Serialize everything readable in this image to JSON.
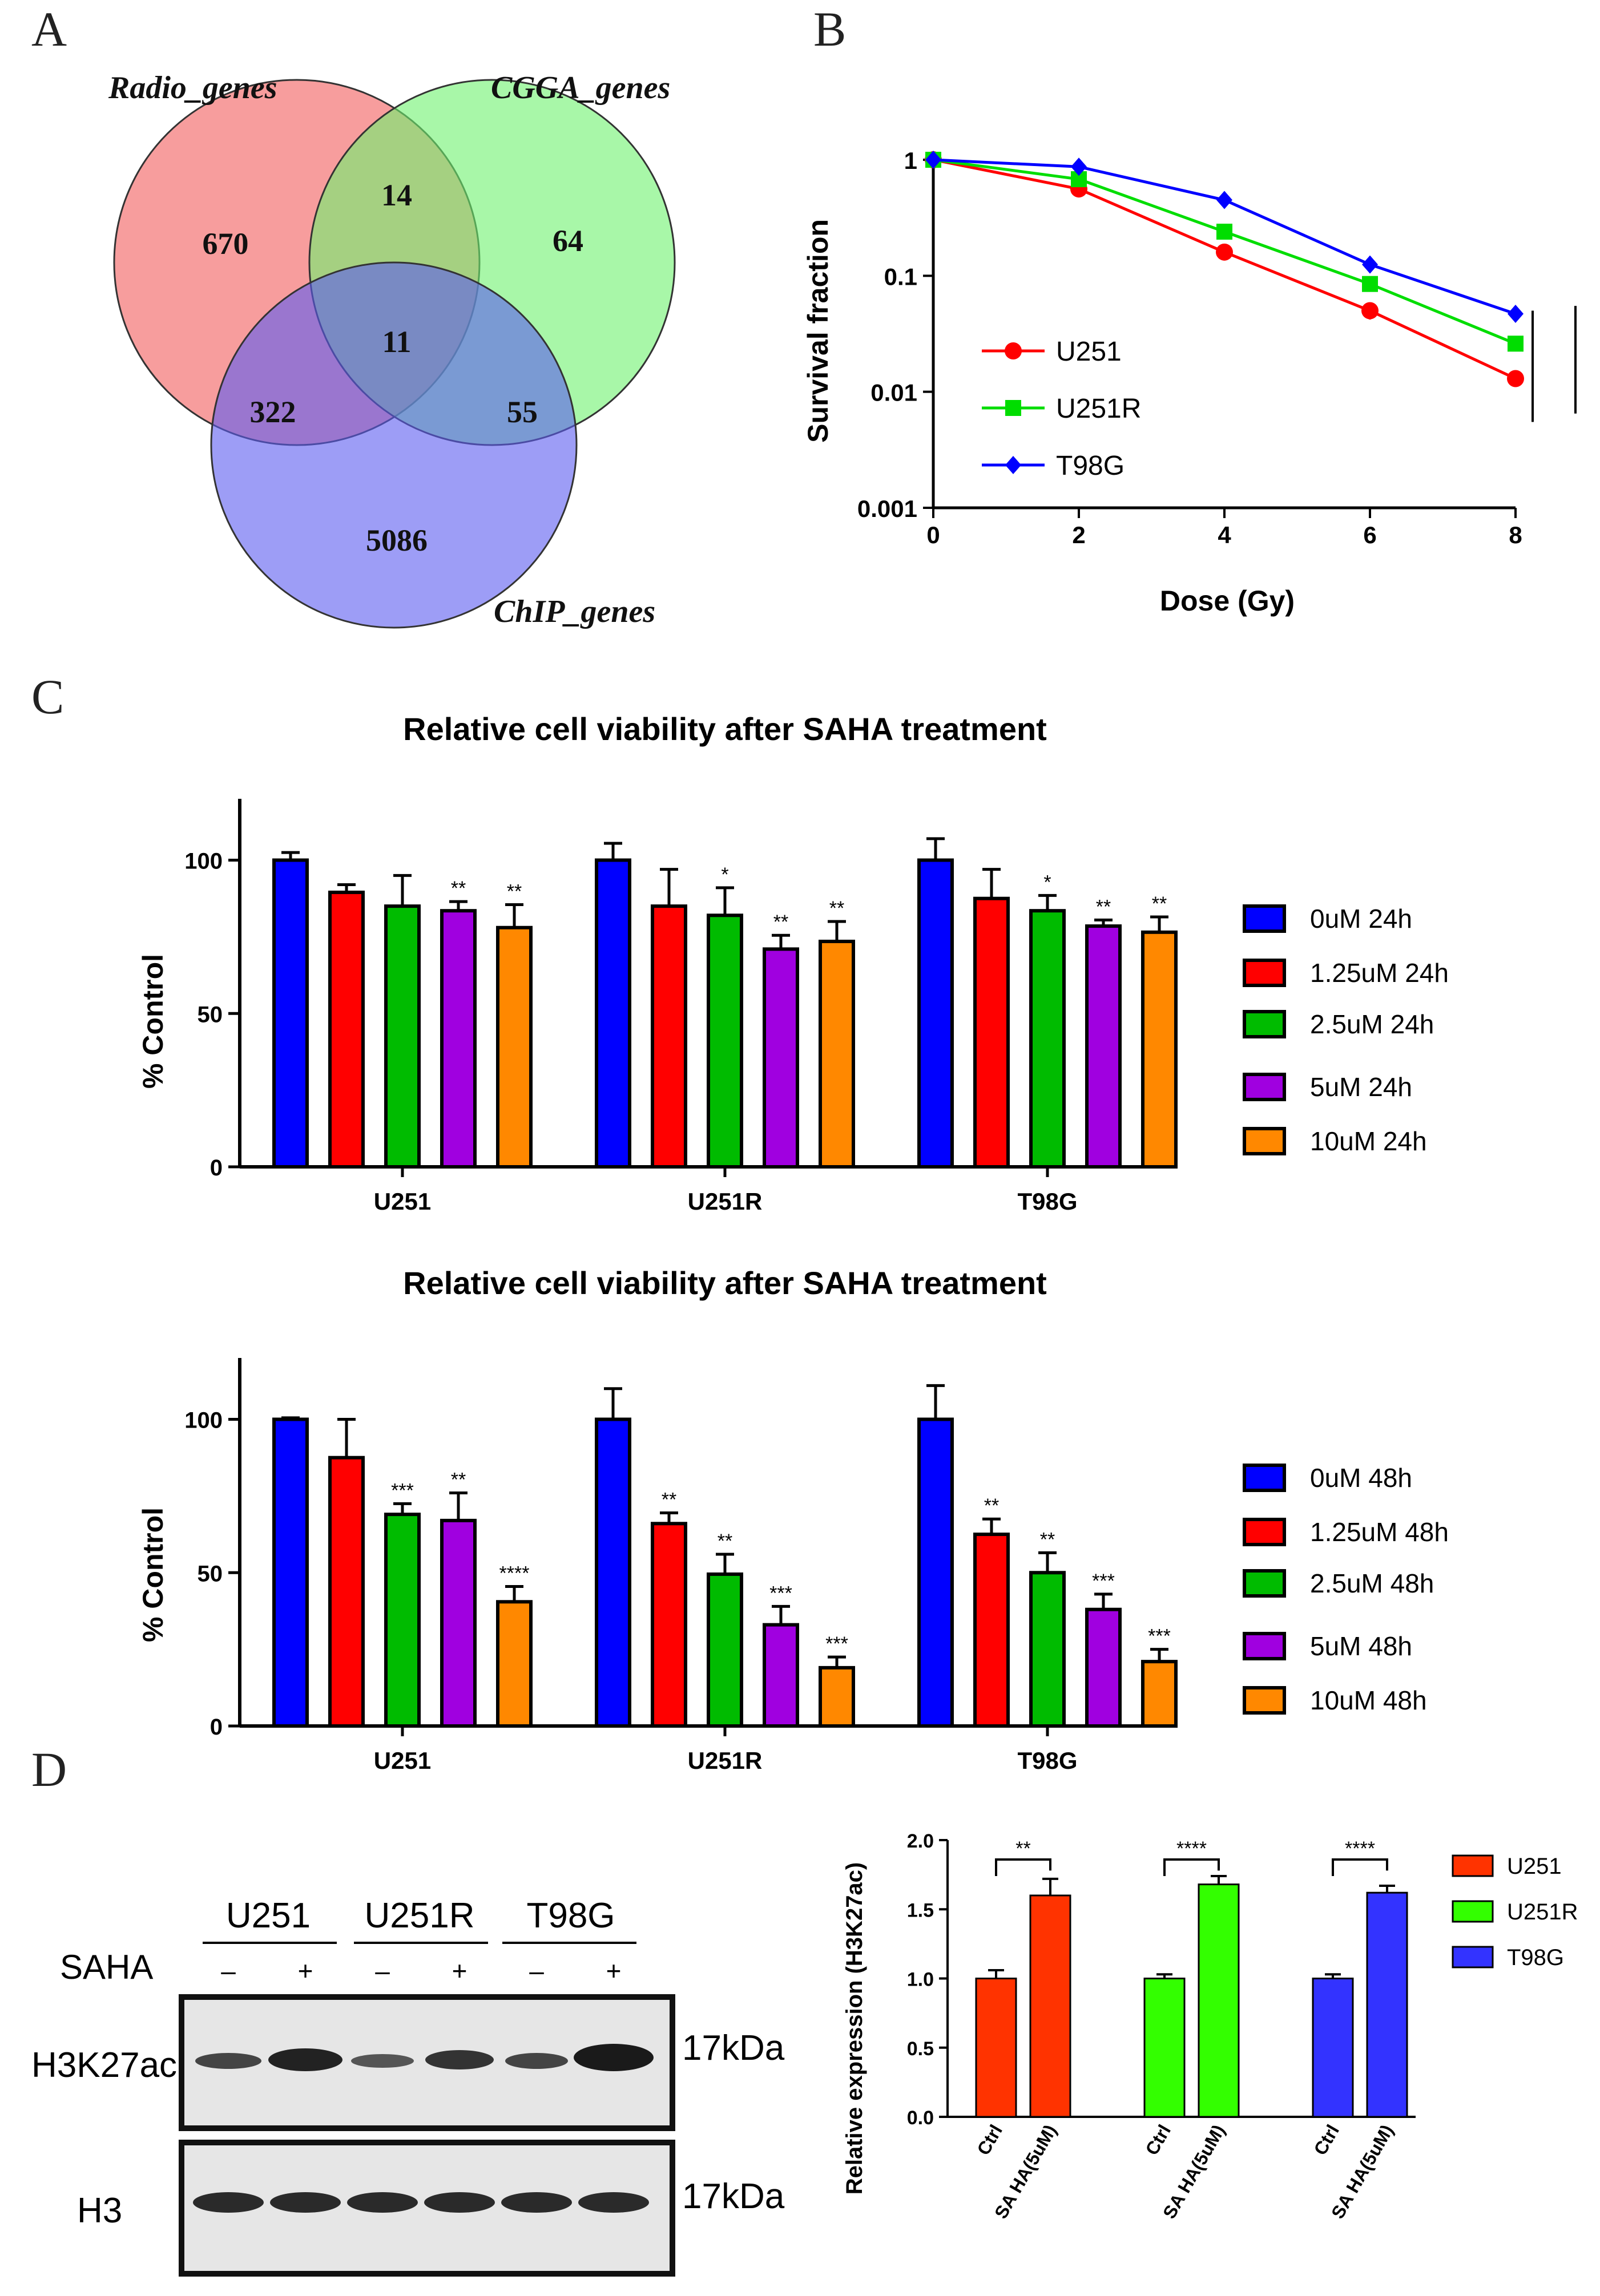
{
  "panel_labels": [
    "A",
    "B",
    "C",
    "D"
  ],
  "venn": {
    "sets": [
      "Radio_genes",
      "CGGA_genes",
      "ChIP_genes"
    ],
    "counts": {
      "radio_only": "670",
      "cgga_only": "64",
      "chip_only": "5086",
      "radio_cgga": "14",
      "radio_chip": "322",
      "cgga_chip": "55",
      "all": "11"
    },
    "colors": {
      "radio": "#f25c5c",
      "cgga": "#6ef26e",
      "chip": "#5b5bf0"
    }
  },
  "chart_data": [
    {
      "id": "B",
      "type": "line",
      "xlabel": "Dose (Gy)",
      "ylabel": "Survival fraction",
      "x_ticks": [
        "0",
        "2",
        "4",
        "6",
        "8"
      ],
      "y_ticks": [
        "1",
        "0.1",
        "0.01",
        "0.001"
      ],
      "xlim": [
        0,
        8
      ],
      "ylim": [
        0.001,
        1
      ],
      "yscale": "log",
      "x": [
        0,
        2,
        4,
        6,
        8
      ],
      "series": [
        {
          "name": "U251",
          "color": "#ff0000",
          "values": [
            1,
            0.56,
            0.16,
            0.05,
            0.013
          ],
          "err": [
            0,
            0.03,
            0.01,
            0.008,
            0.001
          ]
        },
        {
          "name": "U251R",
          "color": "#00dd00",
          "values": [
            1,
            0.68,
            0.24,
            0.085,
            0.026
          ],
          "err": [
            0,
            0.03,
            0.02,
            0.008,
            0.002
          ]
        },
        {
          "name": "T98G",
          "color": "#0000ff",
          "values": [
            1,
            0.87,
            0.45,
            0.125,
            0.047
          ],
          "err": [
            0,
            0.03,
            0.02,
            0.008,
            0.003
          ]
        }
      ]
    },
    {
      "id": "C1",
      "type": "bar",
      "title": "Relative cell viability after SAHA treatment",
      "ylabel": "% Control",
      "ylim": [
        0,
        120
      ],
      "y_ticks": [
        "0",
        "50",
        "100"
      ],
      "categories": [
        "U251",
        "U251R",
        "T98G"
      ],
      "series": [
        {
          "name": "0uM 24h",
          "color": "#0000ff",
          "values": [
            100,
            100,
            100
          ],
          "err": [
            2.5,
            5.5,
            7
          ],
          "stars": [
            "",
            "",
            ""
          ]
        },
        {
          "name": "1.25uM 24h",
          "color": "#ff0000",
          "values": [
            89.5,
            85,
            87.5
          ],
          "err": [
            2.5,
            12,
            9.5
          ],
          "stars": [
            "",
            "",
            ""
          ]
        },
        {
          "name": "2.5uM 24h",
          "color": "#00bb00",
          "values": [
            85,
            82,
            83.5
          ],
          "err": [
            10,
            9,
            5
          ],
          "stars": [
            "",
            "*",
            "*"
          ]
        },
        {
          "name": "5uM 24h",
          "color": "#a000e0",
          "values": [
            83.5,
            71,
            78.5
          ],
          "err": [
            3,
            4.5,
            2
          ],
          "stars": [
            "**",
            "**",
            "**"
          ]
        },
        {
          "name": "10uM 24h",
          "color": "#ff8800",
          "values": [
            78,
            73.5,
            76.5
          ],
          "err": [
            7.5,
            6.5,
            5
          ],
          "stars": [
            "**",
            "**",
            "**"
          ]
        }
      ]
    },
    {
      "id": "C2",
      "type": "bar",
      "title": "Relative cell viability after SAHA treatment",
      "ylabel": "% Control",
      "ylim": [
        0,
        120
      ],
      "y_ticks": [
        "0",
        "50",
        "100"
      ],
      "categories": [
        "U251",
        "U251R",
        "T98G"
      ],
      "series": [
        {
          "name": "0uM 48h",
          "color": "#0000ff",
          "values": [
            100,
            100,
            100
          ],
          "err": [
            0.5,
            10,
            11
          ],
          "stars": [
            "",
            "",
            ""
          ]
        },
        {
          "name": "1.25uM 48h",
          "color": "#ff0000",
          "values": [
            87.5,
            66,
            62.5
          ],
          "err": [
            12.5,
            3.5,
            5
          ],
          "stars": [
            "",
            "**",
            "**"
          ]
        },
        {
          "name": "2.5uM 48h",
          "color": "#00bb00",
          "values": [
            69,
            49.5,
            50
          ],
          "err": [
            3.5,
            6.5,
            6.5
          ],
          "stars": [
            "***",
            "**",
            "**"
          ]
        },
        {
          "name": "5uM 48h",
          "color": "#a000e0",
          "values": [
            67,
            33,
            38
          ],
          "err": [
            9,
            6,
            5
          ],
          "stars": [
            "**",
            "***",
            "***"
          ]
        },
        {
          "name": "10uM 48h",
          "color": "#ff8800",
          "values": [
            40.5,
            19,
            21
          ],
          "err": [
            5,
            3.5,
            4
          ],
          "stars": [
            "****",
            "***",
            "***"
          ]
        }
      ]
    },
    {
      "id": "D",
      "type": "bar",
      "ylabel": "Relative expression (H3K27ac)",
      "ylim": [
        0,
        2.0
      ],
      "y_ticks": [
        "0.0",
        "0.5",
        "1.0",
        "1.5",
        "2.0"
      ],
      "x_labels": [
        "Ctrl",
        "SA HA(5uM)"
      ],
      "groups": [
        {
          "name": "U251",
          "color": "#ff3300",
          "values": [
            1.0,
            1.6
          ],
          "err": [
            0.06,
            0.12
          ],
          "sig": "**"
        },
        {
          "name": "U251R",
          "color": "#33ff00",
          "values": [
            1.0,
            1.68
          ],
          "err": [
            0.03,
            0.06
          ],
          "sig": "****"
        },
        {
          "name": "T98G",
          "color": "#3333ff",
          "values": [
            1.0,
            1.62
          ],
          "err": [
            0.03,
            0.05
          ],
          "sig": "****"
        }
      ]
    }
  ],
  "blot": {
    "cell_lines": [
      "U251",
      "U251R",
      "T98G"
    ],
    "treatment_label": "SAHA",
    "signs": [
      "–",
      "+",
      "–",
      "+",
      "–",
      "+"
    ],
    "rows": [
      {
        "name": "H3K27ac",
        "size": "17kDa"
      },
      {
        "name": "H3",
        "size": "17kDa"
      }
    ]
  }
}
